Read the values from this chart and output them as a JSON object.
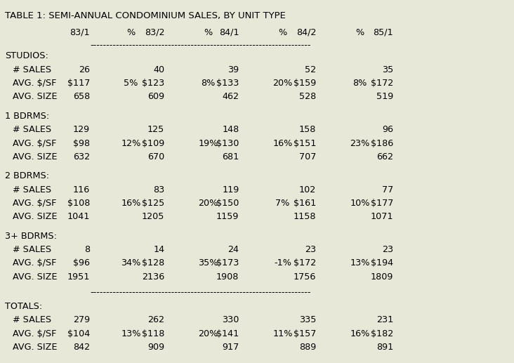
{
  "title": "TABLE 1: SEMI-ANNUAL CONDOMINIUM SALES, BY UNIT TYPE",
  "header_cols": [
    "",
    "83/1",
    "%",
    "83/2",
    "%",
    "84/1",
    "%",
    "84/2",
    "%",
    "85/1"
  ],
  "sections": [
    {
      "label": "STUDIOS:",
      "rows": [
        {
          "name": "# SALES",
          "vals": [
            "26",
            "",
            "40",
            "",
            "39",
            "",
            "52",
            "",
            "35"
          ]
        },
        {
          "name": "AVG. $/SF",
          "vals": [
            "$117",
            "5%",
            "$123",
            "8%",
            "$133",
            "20%",
            "$159",
            "8%",
            "$172"
          ]
        },
        {
          "name": "AVG. SIZE",
          "vals": [
            "658",
            "",
            "609",
            "",
            "462",
            "",
            "528",
            "",
            "519"
          ]
        }
      ],
      "underline_before": true,
      "underline_after": false
    },
    {
      "label": "1 BDRMS:",
      "rows": [
        {
          "name": "# SALES",
          "vals": [
            "129",
            "",
            "125",
            "",
            "148",
            "",
            "158",
            "",
            "96"
          ]
        },
        {
          "name": "AVG. $/SF",
          "vals": [
            "$98",
            "12%",
            "$109",
            "19%",
            "$130",
            "16%",
            "$151",
            "23%",
            "$186"
          ]
        },
        {
          "name": "AVG. SIZE",
          "vals": [
            "632",
            "",
            "670",
            "",
            "681",
            "",
            "707",
            "",
            "662"
          ]
        }
      ],
      "underline_before": false,
      "underline_after": false
    },
    {
      "label": "2 BDRMS:",
      "rows": [
        {
          "name": "# SALES",
          "vals": [
            "116",
            "",
            "83",
            "",
            "119",
            "",
            "102",
            "",
            "77"
          ]
        },
        {
          "name": "AVG. $/SF",
          "vals": [
            "$108",
            "16%",
            "$125",
            "20%",
            "$150",
            "7%",
            "$161",
            "10%",
            "$177"
          ]
        },
        {
          "name": "AVG. SIZE",
          "vals": [
            "1041",
            "",
            "1205",
            "",
            "1159",
            "",
            "1158",
            "",
            "1071"
          ]
        }
      ],
      "underline_before": false,
      "underline_after": false
    },
    {
      "label": "3+ BDRMS:",
      "rows": [
        {
          "name": "# SALES",
          "vals": [
            "8",
            "",
            "14",
            "",
            "24",
            "",
            "23",
            "",
            "23"
          ]
        },
        {
          "name": "AVG. $/SF",
          "vals": [
            "$96",
            "34%",
            "$128",
            "35%",
            "$173",
            "-1%",
            "$172",
            "13%",
            "$194"
          ]
        },
        {
          "name": "AVG. SIZE",
          "vals": [
            "1951",
            "",
            "2136",
            "",
            "1908",
            "",
            "1756",
            "",
            "1809"
          ]
        }
      ],
      "underline_before": false,
      "underline_after": true
    },
    {
      "label": "TOTALS:",
      "rows": [
        {
          "name": "# SALES",
          "vals": [
            "279",
            "",
            "262",
            "",
            "330",
            "",
            "335",
            "",
            "231"
          ]
        },
        {
          "name": "AVG. $/SF",
          "vals": [
            "$104",
            "13%",
            "$118",
            "20%",
            "$141",
            "11%",
            "$157",
            "16%",
            "$182"
          ]
        },
        {
          "name": "AVG. SIZE",
          "vals": [
            "842",
            "",
            "909",
            "",
            "917",
            "",
            "889",
            "",
            "891"
          ]
        }
      ],
      "underline_before": false,
      "underline_after": false
    }
  ],
  "bg_color": "#e8e8d8",
  "text_color": "#000000",
  "font_family": "Courier New",
  "font_size": 9.2
}
